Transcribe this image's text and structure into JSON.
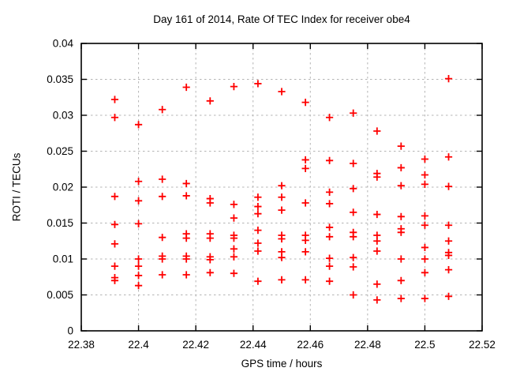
{
  "chart_data": {
    "type": "scatter",
    "title": "Day 161 of 2014, Rate Of TEC Index for receiver obe4",
    "xlabel": "GPS time / hours",
    "ylabel": "ROTI / TECUs",
    "xlim": [
      22.38,
      22.52
    ],
    "ylim": [
      0,
      0.04
    ],
    "xticks": [
      22.38,
      22.4,
      22.42,
      22.44,
      22.46,
      22.48,
      22.5,
      22.52
    ],
    "xtick_labels": [
      "22.38",
      "22.4",
      "22.42",
      "22.44",
      "22.46",
      "22.48",
      "22.5",
      "22.52"
    ],
    "yticks": [
      0,
      0.005,
      0.01,
      0.015,
      0.02,
      0.025,
      0.03,
      0.035,
      0.04
    ],
    "ytick_labels": [
      "0",
      "0.005",
      "0.01",
      "0.015",
      "0.02",
      "0.025",
      "0.03",
      "0.035",
      "0.04"
    ],
    "grid": true,
    "legend": "none",
    "marker_shape": "plus",
    "marker_color": "#ff0000",
    "grid_color": "#b4b4b4",
    "axis_color": "#000000",
    "series": [
      {
        "name": "ROTI",
        "points": [
          [
            22.3917,
            0.0322
          ],
          [
            22.3917,
            0.0297
          ],
          [
            22.3917,
            0.0187
          ],
          [
            22.3917,
            0.0148
          ],
          [
            22.3917,
            0.0121
          ],
          [
            22.3917,
            0.009
          ],
          [
            22.3917,
            0.0074
          ],
          [
            22.3917,
            0.007
          ],
          [
            22.4,
            0.0287
          ],
          [
            22.4,
            0.0208
          ],
          [
            22.4,
            0.0181
          ],
          [
            22.4,
            0.0149
          ],
          [
            22.4,
            0.01
          ],
          [
            22.4,
            0.009
          ],
          [
            22.4,
            0.0077
          ],
          [
            22.4,
            0.0063
          ],
          [
            22.4083,
            0.0308
          ],
          [
            22.4083,
            0.0211
          ],
          [
            22.4083,
            0.0187
          ],
          [
            22.4083,
            0.013
          ],
          [
            22.4083,
            0.0104
          ],
          [
            22.4083,
            0.01
          ],
          [
            22.4083,
            0.0078
          ],
          [
            22.4167,
            0.0339
          ],
          [
            22.4167,
            0.0205
          ],
          [
            22.4167,
            0.0188
          ],
          [
            22.4167,
            0.0135
          ],
          [
            22.4167,
            0.0129
          ],
          [
            22.4167,
            0.0104
          ],
          [
            22.4167,
            0.01
          ],
          [
            22.4167,
            0.0078
          ],
          [
            22.425,
            0.032
          ],
          [
            22.425,
            0.0184
          ],
          [
            22.425,
            0.0178
          ],
          [
            22.425,
            0.0135
          ],
          [
            22.425,
            0.0129
          ],
          [
            22.425,
            0.0103
          ],
          [
            22.425,
            0.0099
          ],
          [
            22.425,
            0.0081
          ],
          [
            22.4333,
            0.034
          ],
          [
            22.4333,
            0.0176
          ],
          [
            22.4333,
            0.0157
          ],
          [
            22.4333,
            0.0133
          ],
          [
            22.4333,
            0.0129
          ],
          [
            22.4333,
            0.0114
          ],
          [
            22.4333,
            0.0103
          ],
          [
            22.4333,
            0.008
          ],
          [
            22.4417,
            0.0344
          ],
          [
            22.4417,
            0.0186
          ],
          [
            22.4417,
            0.0173
          ],
          [
            22.4417,
            0.0163
          ],
          [
            22.4417,
            0.014
          ],
          [
            22.4417,
            0.0122
          ],
          [
            22.4417,
            0.0111
          ],
          [
            22.4417,
            0.0069
          ],
          [
            22.45,
            0.0333
          ],
          [
            22.45,
            0.0202
          ],
          [
            22.45,
            0.0186
          ],
          [
            22.45,
            0.0168
          ],
          [
            22.45,
            0.0133
          ],
          [
            22.45,
            0.0128
          ],
          [
            22.45,
            0.011
          ],
          [
            22.45,
            0.0102
          ],
          [
            22.45,
            0.0071
          ],
          [
            22.4583,
            0.0318
          ],
          [
            22.4583,
            0.0238
          ],
          [
            22.4583,
            0.0226
          ],
          [
            22.4583,
            0.0178
          ],
          [
            22.4583,
            0.0133
          ],
          [
            22.4583,
            0.0126
          ],
          [
            22.4583,
            0.011
          ],
          [
            22.4583,
            0.0071
          ],
          [
            22.4667,
            0.0297
          ],
          [
            22.4667,
            0.0237
          ],
          [
            22.4667,
            0.0193
          ],
          [
            22.4667,
            0.0177
          ],
          [
            22.4667,
            0.0144
          ],
          [
            22.4667,
            0.0131
          ],
          [
            22.4667,
            0.0101
          ],
          [
            22.4667,
            0.009
          ],
          [
            22.4667,
            0.0069
          ],
          [
            22.475,
            0.0303
          ],
          [
            22.475,
            0.0233
          ],
          [
            22.475,
            0.0198
          ],
          [
            22.475,
            0.0165
          ],
          [
            22.475,
            0.0137
          ],
          [
            22.475,
            0.0131
          ],
          [
            22.475,
            0.0102
          ],
          [
            22.475,
            0.0089
          ],
          [
            22.475,
            0.005
          ],
          [
            22.4833,
            0.0278
          ],
          [
            22.4833,
            0.0219
          ],
          [
            22.4833,
            0.0214
          ],
          [
            22.4833,
            0.0162
          ],
          [
            22.4833,
            0.0133
          ],
          [
            22.4833,
            0.0125
          ],
          [
            22.4833,
            0.0111
          ],
          [
            22.4833,
            0.0065
          ],
          [
            22.4833,
            0.0043
          ],
          [
            22.4917,
            0.0257
          ],
          [
            22.4917,
            0.0227
          ],
          [
            22.4917,
            0.0202
          ],
          [
            22.4917,
            0.0159
          ],
          [
            22.4917,
            0.0142
          ],
          [
            22.4917,
            0.0137
          ],
          [
            22.4917,
            0.01
          ],
          [
            22.4917,
            0.007
          ],
          [
            22.4917,
            0.0045
          ],
          [
            22.5,
            0.0239
          ],
          [
            22.5,
            0.0217
          ],
          [
            22.5,
            0.0204
          ],
          [
            22.5,
            0.016
          ],
          [
            22.5,
            0.0147
          ],
          [
            22.5,
            0.0116
          ],
          [
            22.5,
            0.01
          ],
          [
            22.5,
            0.0081
          ],
          [
            22.5,
            0.0045
          ],
          [
            22.5083,
            0.0351
          ],
          [
            22.5083,
            0.0242
          ],
          [
            22.5083,
            0.0201
          ],
          [
            22.5083,
            0.0147
          ],
          [
            22.5083,
            0.0125
          ],
          [
            22.5083,
            0.0109
          ],
          [
            22.5083,
            0.0105
          ],
          [
            22.5083,
            0.0085
          ],
          [
            22.5083,
            0.0048
          ]
        ]
      }
    ]
  }
}
